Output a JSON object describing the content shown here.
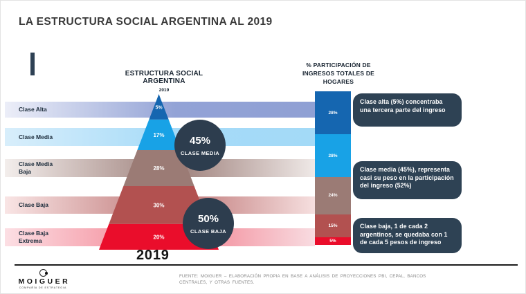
{
  "slide": {
    "title": "LA ESTRUCTURA SOCIAL ARGENTINA AL 2019",
    "year_caption": "2019",
    "source_note": "FUENTE: MOIGUER – ELABORACIÓN PROPIA EN BASE A ANÁLISIS DE PROYECCIONES PBI, CEPAL, BANCOS CENTRALES, Y OTRAS FUENTES.",
    "logo": {
      "name": "MOIGUER",
      "tagline": "COMPAÑÍA DE ESTRATEGIA"
    }
  },
  "colors": {
    "accent_dark": "#2e4154",
    "callout_bg": "#2e4254",
    "circle_bg": "#2d3d4e",
    "class_palette": [
      "#1566b0",
      "#18a2e6",
      "#9b7b75",
      "#b25150",
      "#ea0d2b"
    ]
  },
  "band_gradients": [
    [
      "#eceef8",
      "#93a3d6",
      "#8fa0d4"
    ],
    [
      "#d8eefb",
      "#a6dbf8",
      "#a3daf7"
    ],
    [
      "#f3eeec",
      "#9d7f7a",
      "#efe9e7"
    ],
    [
      "#f9e5e5",
      "#bd7474",
      "#f6dfdf"
    ],
    [
      "#fcdfe4",
      "#f27b8b",
      "#f8dce1"
    ]
  ],
  "callouts": [
    "Clase alta (5%) concentraba una tercera parte del ingreso",
    "Clase media (45%), representa casi su peso en la participación del ingreso (52%)",
    "Clase baja, 1 de cada 2 argentinos, se quedaba con 1 de cada 5 pesos de ingreso"
  ],
  "chart_data": [
    {
      "type": "pyramid",
      "title": "ESTRUCTURA SOCIAL ARGENTINA",
      "subtitle": "2019",
      "categories": [
        "Clase Alta",
        "Clase Media",
        "Clase Media Baja",
        "Clase Baja",
        "Clase Baja Extrema"
      ],
      "values": [
        5,
        17,
        28,
        30,
        20
      ],
      "labels": [
        "5%",
        "17%",
        "28%",
        "30%",
        "20%"
      ],
      "colors": [
        "#1566b0",
        "#18a2e6",
        "#9b7b75",
        "#b25150",
        "#ea0d2b"
      ],
      "segment_height_fracs": [
        0.164,
        0.196,
        0.231,
        0.244,
        0.165
      ],
      "annotations": [
        {
          "value": "45%",
          "label": "CLASE MEDIA"
        },
        {
          "value": "50%",
          "label": "CLASE BAJA"
        }
      ]
    },
    {
      "type": "bar",
      "title": "% PARTICIPACIÓN DE INGRESOS TOTALES DE HOGARES",
      "categories": [
        "Clase Alta",
        "Clase Media",
        "Clase Media Baja",
        "Clase Baja",
        "Clase Baja Extrema"
      ],
      "values": [
        28,
        28,
        24,
        15,
        5
      ],
      "labels": [
        "28%",
        "28%",
        "24%",
        "15%",
        "5%"
      ],
      "colors": [
        "#1566b0",
        "#18a2e6",
        "#9b7b75",
        "#b25150",
        "#ea0d2b"
      ],
      "ylim": [
        0,
        100
      ],
      "legend": "none",
      "grid": false
    }
  ]
}
